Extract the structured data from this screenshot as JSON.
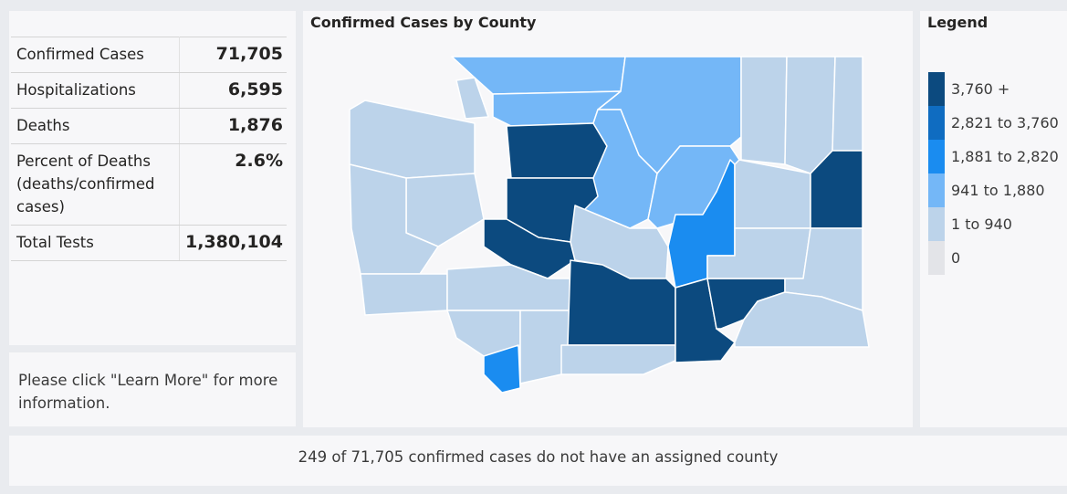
{
  "stats": [
    {
      "label": "Confirmed Cases",
      "value": "71,705"
    },
    {
      "label": "Hospitalizations",
      "value": "6,595"
    },
    {
      "label": "Deaths",
      "value": "1,876"
    },
    {
      "label": "Percent of Deaths (deaths/confirmed cases)",
      "value": "2.6%"
    },
    {
      "label": "Total Tests",
      "value": "1,380,104"
    }
  ],
  "note": "Please click \"Learn More\" for more information.",
  "map": {
    "title": "Confirmed Cases by County"
  },
  "legend": {
    "title": "Legend",
    "items": [
      {
        "label": "3,760 +",
        "color": "#0c4a7f"
      },
      {
        "label": "2,821 to 3,760",
        "color": "#0f6cc1"
      },
      {
        "label": "1,881 to 2,820",
        "color": "#1a8cf0"
      },
      {
        "label": "941 to 1,880",
        "color": "#74b7f7"
      },
      {
        "label": "1 to 940",
        "color": "#bcd3ea"
      },
      {
        "label": "0",
        "color": "#e3e4e8"
      }
    ]
  },
  "footer": "249 of 71,705 confirmed cases do not have an assigned county"
}
